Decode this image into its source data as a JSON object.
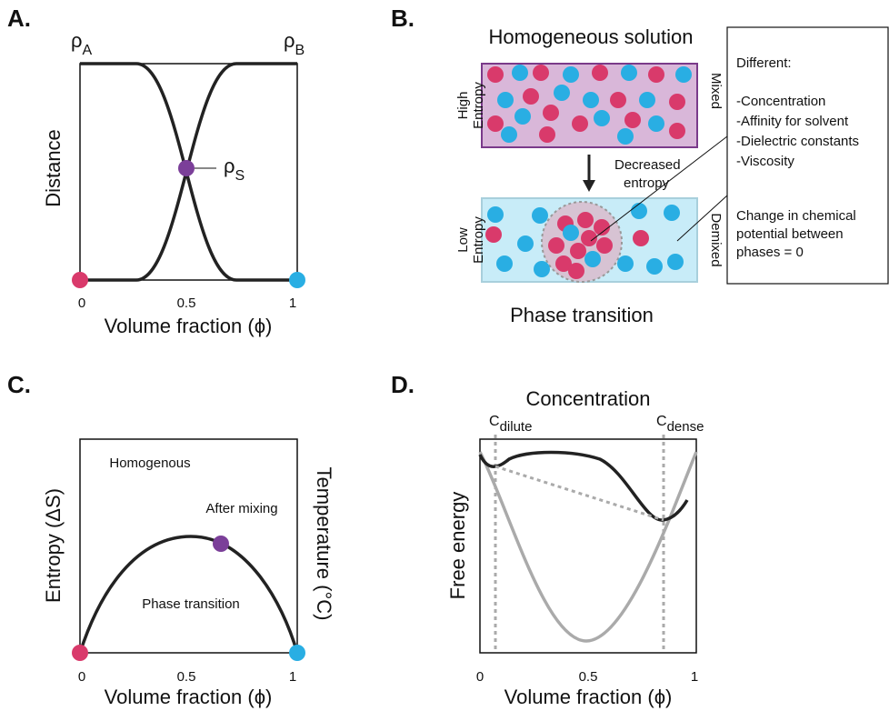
{
  "panel_a": {
    "label": "A.",
    "rho_a": {
      "symbol": "ρ",
      "sub": "A"
    },
    "rho_b": {
      "symbol": "ρ",
      "sub": "B"
    },
    "rho_s": {
      "symbol": "ρ",
      "sub": "S"
    },
    "y_label": "Distance",
    "x_ticks": [
      "0",
      "0.5",
      "1"
    ],
    "x_label": "Volume fraction (ϕ)"
  },
  "panel_b": {
    "label": "B.",
    "title": "Homogeneous solution",
    "top_left": [
      "High",
      "Entropy"
    ],
    "top_right": "Mixed",
    "arrow_label": [
      "Decreased",
      "entropy"
    ],
    "bottom_left": [
      "Low",
      "Entropy"
    ],
    "bottom_right": "Demixed",
    "caption": "Phase transition",
    "box": {
      "heading": "Different:",
      "items": [
        "-Concentration",
        "-Affinity for solvent",
        "-Dielectric constants",
        "-Viscosity"
      ],
      "note": [
        "Change in chemical",
        "potential between",
        "phases = 0"
      ]
    }
  },
  "panel_c": {
    "label": "C.",
    "y_label": "Entropy (ΔS)",
    "y2_label": "Temperature (°C)",
    "region_top": "Homogenous",
    "point_label": "After mixing",
    "region_bottom": "Phase transition",
    "x_ticks": [
      "0",
      "0.5",
      "1"
    ],
    "x_label": "Volume fraction (ϕ)"
  },
  "panel_d": {
    "label": "D.",
    "title": "Concentration",
    "c_dilute": {
      "symbol": "C",
      "sub": "dilute"
    },
    "c_dense": {
      "symbol": "C",
      "sub": "dense"
    },
    "y_label": "Free energy",
    "x_ticks": [
      "0",
      "0.5",
      "1"
    ],
    "x_label": "Volume fraction (ϕ)"
  }
}
